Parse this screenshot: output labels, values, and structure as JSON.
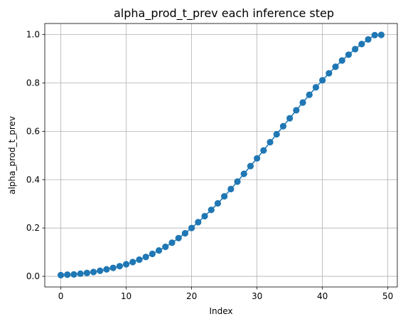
{
  "chart_data": {
    "type": "line",
    "title": "alpha_prod_t_prev each inference step",
    "xlabel": "Index",
    "ylabel": "alpha_prod_t_prev",
    "xlim": [
      -2.45,
      51.45
    ],
    "ylim": [
      -0.044,
      1.046
    ],
    "xticks": [
      0,
      10,
      20,
      30,
      40,
      50
    ],
    "yticks": [
      0.0,
      0.2,
      0.4,
      0.6,
      0.8,
      1.0
    ],
    "xtick_labels": [
      "0",
      "10",
      "20",
      "30",
      "40",
      "50"
    ],
    "ytick_labels": [
      "0.0",
      "0.2",
      "0.4",
      "0.6",
      "0.8",
      "1.0"
    ],
    "grid": true,
    "color": "#1f77b4",
    "marker": "circle",
    "x": [
      0,
      1,
      2,
      3,
      4,
      5,
      6,
      7,
      8,
      9,
      10,
      11,
      12,
      13,
      14,
      15,
      16,
      17,
      18,
      19,
      20,
      21,
      22,
      23,
      24,
      25,
      26,
      27,
      28,
      29,
      30,
      31,
      32,
      33,
      34,
      35,
      36,
      37,
      38,
      39,
      40,
      41,
      42,
      43,
      44,
      45,
      46,
      47,
      48,
      49
    ],
    "series": [
      {
        "values": [
          0.005,
          0.007,
          0.008,
          0.011,
          0.014,
          0.018,
          0.023,
          0.029,
          0.035,
          0.042,
          0.05,
          0.059,
          0.069,
          0.08,
          0.093,
          0.107,
          0.122,
          0.139,
          0.158,
          0.178,
          0.2,
          0.224,
          0.249,
          0.275,
          0.302,
          0.331,
          0.361,
          0.392,
          0.424,
          0.456,
          0.488,
          0.521,
          0.555,
          0.588,
          0.621,
          0.654,
          0.687,
          0.719,
          0.751,
          0.782,
          0.811,
          0.84,
          0.867,
          0.893,
          0.917,
          0.94,
          0.961,
          0.98,
          0.998,
          0.999
        ]
      }
    ]
  }
}
